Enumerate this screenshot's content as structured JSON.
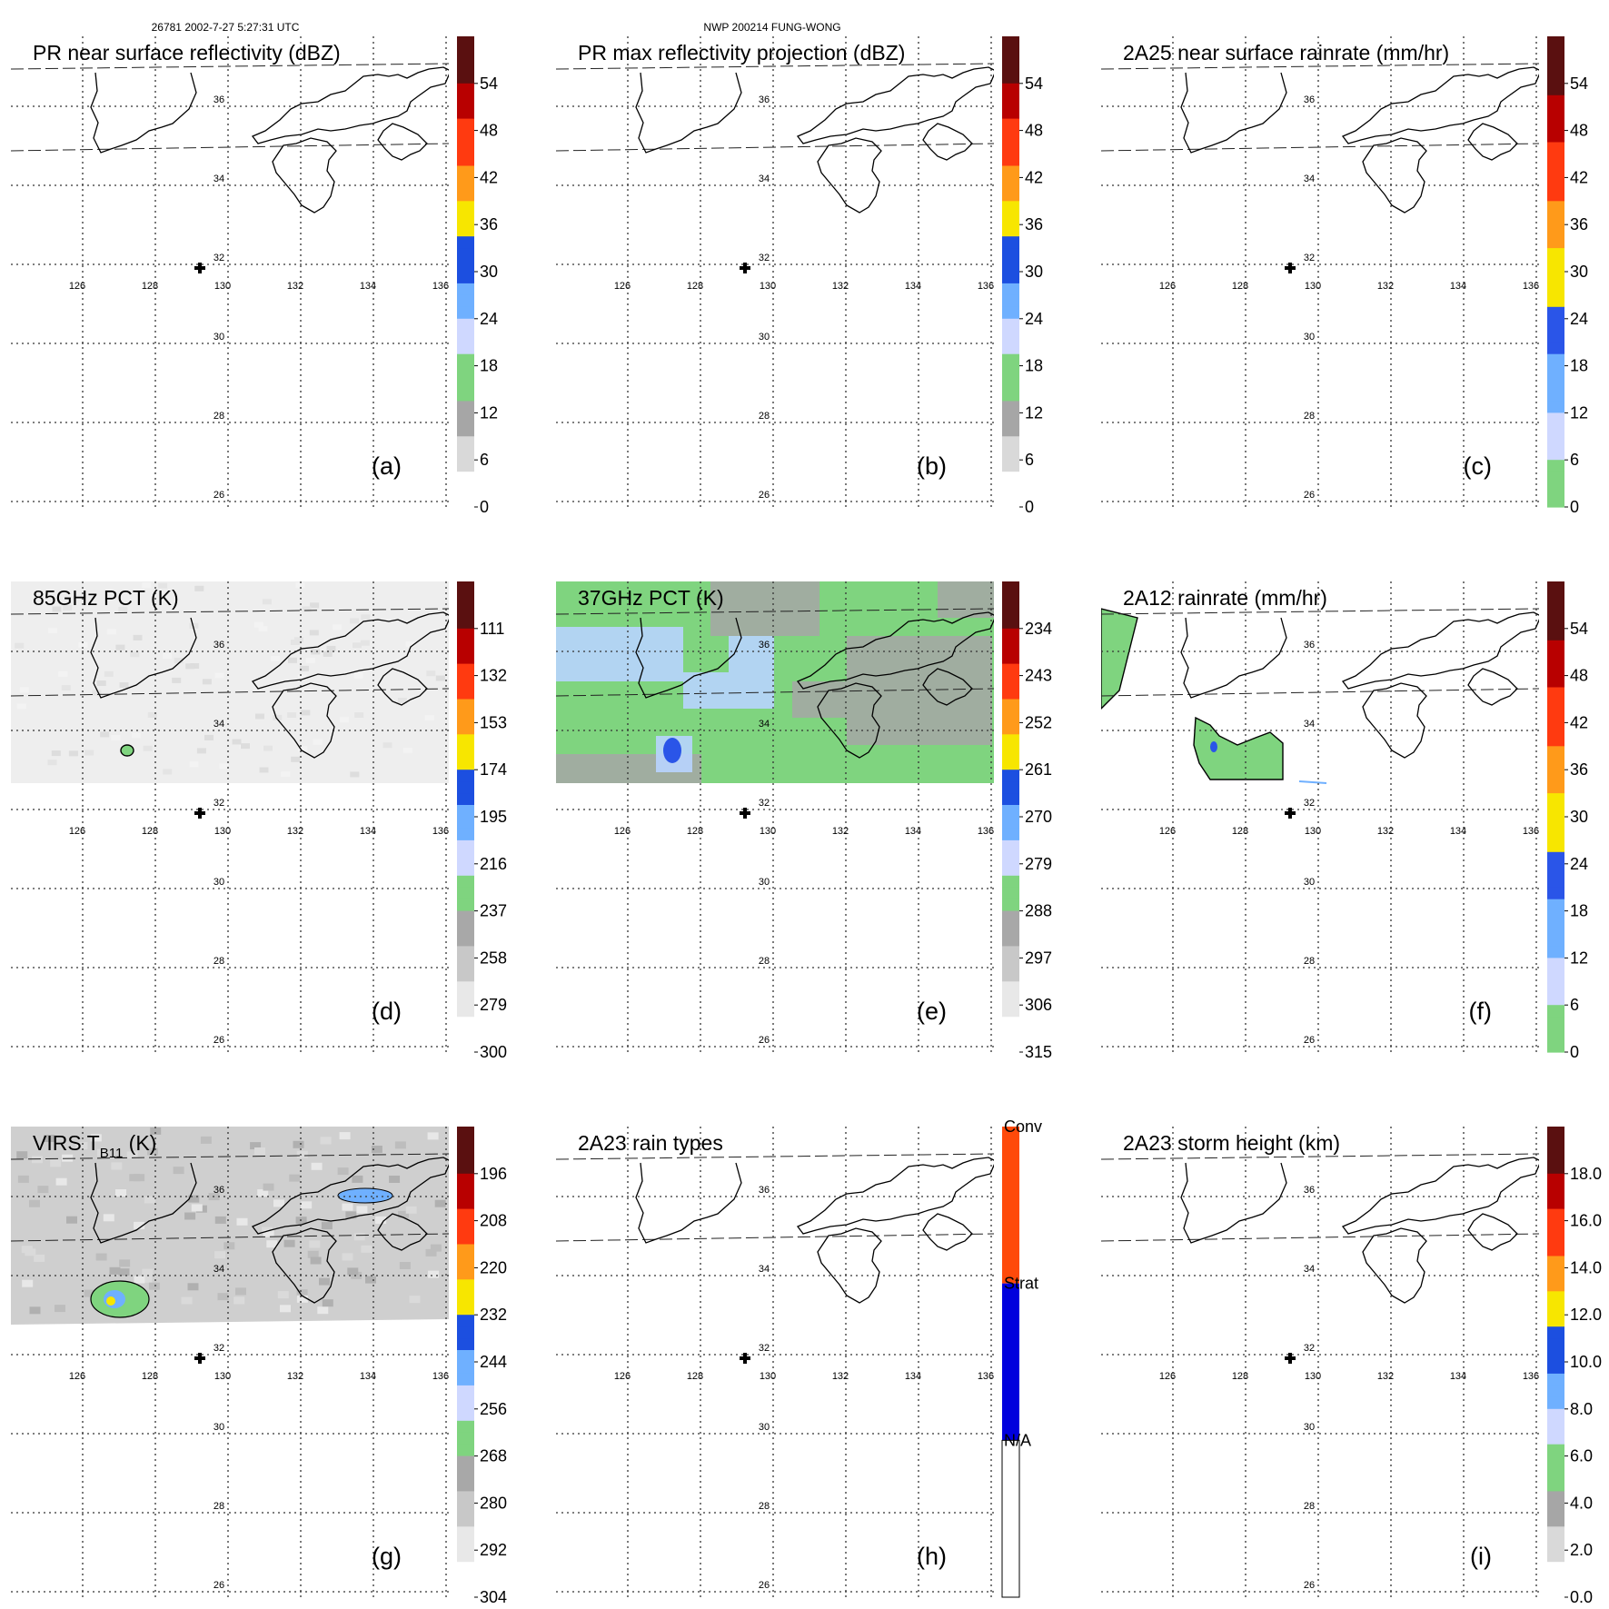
{
  "header": {
    "orbit_time": "26781 2002-7-27 5:27:31 UTC",
    "storm": "NWP 200214 FUNG-WONG"
  },
  "lat_labels": [
    "36",
    "34",
    "32",
    "30",
    "28",
    "26"
  ],
  "lon_labels": [
    "126",
    "128",
    "130",
    "132",
    "134",
    "136"
  ],
  "panels": [
    {
      "id": "a",
      "label": "(a)",
      "title": "PR near surface reflectivity (dBZ)",
      "type": "dbz",
      "field": "none",
      "colorbar": {
        "ticks": [
          "54",
          "48",
          "42",
          "36",
          "30",
          "24",
          "18",
          "12",
          "6",
          "0"
        ],
        "range": [
          0,
          60
        ]
      }
    },
    {
      "id": "b",
      "label": "(b)",
      "title": "PR max reflectivity projection (dBZ)",
      "type": "dbz",
      "field": "none",
      "colorbar": {
        "ticks": [
          "54",
          "48",
          "42",
          "36",
          "30",
          "24",
          "18",
          "12",
          "6",
          "0"
        ],
        "range": [
          0,
          60
        ]
      }
    },
    {
      "id": "c",
      "label": "(c)",
      "title": "2A25 near surface rainrate (mm/hr)",
      "type": "rain",
      "field": "none",
      "colorbar": {
        "ticks": [
          "54",
          "48",
          "42",
          "36",
          "30",
          "24",
          "18",
          "12",
          "6",
          "0"
        ],
        "range": [
          0,
          60
        ]
      }
    },
    {
      "id": "d",
      "label": "(d)",
      "title": "85GHz PCT (K)",
      "type": "pct",
      "field": "pct85",
      "colorbar": {
        "ticks": [
          "111",
          "132",
          "153",
          "174",
          "195",
          "216",
          "237",
          "258",
          "279",
          "300"
        ],
        "range": [
          90,
          300
        ]
      }
    },
    {
      "id": "e",
      "label": "(e)",
      "title": "37GHz PCT (K)",
      "type": "pct",
      "field": "pct37",
      "colorbar": {
        "ticks": [
          "234",
          "243",
          "252",
          "261",
          "270",
          "279",
          "288",
          "297",
          "306",
          "315"
        ],
        "range": [
          225,
          315
        ]
      }
    },
    {
      "id": "f",
      "label": "(f)",
      "title": "2A12 rainrate (mm/hr)",
      "type": "rain",
      "field": "rain2a12",
      "colorbar": {
        "ticks": [
          "54",
          "48",
          "42",
          "36",
          "30",
          "24",
          "18",
          "12",
          "6",
          "0"
        ],
        "range": [
          0,
          60
        ]
      }
    },
    {
      "id": "g",
      "label": "(g)",
      "title": "VIRS T",
      "title_sub": "B11",
      "title_suffix": " (K)",
      "type": "virs",
      "field": "virs",
      "colorbar": {
        "ticks": [
          "196",
          "208",
          "220",
          "232",
          "244",
          "256",
          "268",
          "280",
          "292",
          "304"
        ],
        "range": [
          184,
          304
        ]
      }
    },
    {
      "id": "h",
      "label": "(h)",
      "title": "2A23 rain types",
      "type": "types",
      "field": "none",
      "colorbar": {
        "ticks": [
          "Conv",
          "Strat",
          "N/A"
        ],
        "range": [
          0,
          3
        ]
      }
    },
    {
      "id": "i",
      "label": "(i)",
      "title": "2A23 storm height (km)",
      "type": "height",
      "field": "none",
      "colorbar": {
        "ticks": [
          "18.0",
          "16.0",
          "14.0",
          "12.0",
          "10.0",
          "8.0",
          "6.0",
          "4.0",
          "2.0",
          "0.0"
        ],
        "range": [
          0,
          20
        ]
      }
    }
  ],
  "colors": {
    "dbz": [
      "#ffffff",
      "#d9d9d9",
      "#a6a6a6",
      "#7fd47f",
      "#cfd8ff",
      "#6fb0ff",
      "#1c4fe0",
      "#f7e600",
      "#ff9a1a",
      "#ff3a10",
      "#b80000",
      "#5a1010"
    ],
    "rain": [
      "#7fd47f",
      "#cfd8ff",
      "#6fb0ff",
      "#2a55e8",
      "#f7e600",
      "#ff9a1a",
      "#ff3a10",
      "#b80000",
      "#5a1010"
    ],
    "types": [
      "#ffffff",
      "#0000dd",
      "#ff4a0a"
    ]
  }
}
